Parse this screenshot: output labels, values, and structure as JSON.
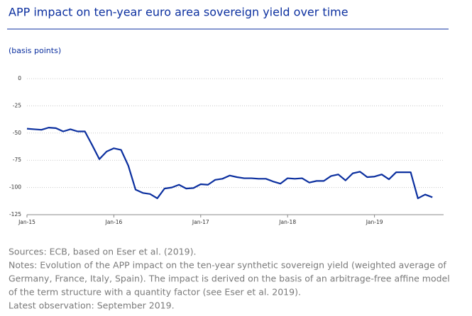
{
  "chart_data": {
    "type": "line",
    "title": "APP impact on ten-year euro area sovereign yield over time",
    "subtitle": "(basis points)",
    "categories": [
      "Jan-15",
      null,
      null,
      null,
      null,
      null,
      null,
      null,
      null,
      null,
      null,
      null,
      "Jan-16",
      null,
      null,
      null,
      null,
      null,
      null,
      null,
      null,
      null,
      null,
      null,
      "Jan-17",
      null,
      null,
      null,
      null,
      null,
      null,
      null,
      null,
      null,
      null,
      null,
      "Jan-18",
      null,
      null,
      null,
      null,
      null,
      null,
      null,
      null,
      null,
      null,
      null,
      "Jan-19",
      null,
      null,
      null,
      null,
      null,
      null,
      null,
      null
    ],
    "series": [
      {
        "color": "#0b2f9f",
        "values": [
          -46,
          -46.5,
          -47,
          -45,
          -45.5,
          -48.5,
          -46.5,
          -48.5,
          -48.5,
          -61,
          -74,
          -67,
          -64,
          -65.5,
          -80,
          -102,
          -105,
          -106,
          -110,
          -101,
          -100,
          -97.5,
          -101,
          -100.5,
          -97,
          -97.5,
          -93,
          -92,
          -89,
          -90.5,
          -91.5,
          -91.5,
          -92,
          -92,
          -94.5,
          -96.5,
          -91.5,
          -92,
          -91.5,
          -95.5,
          -94,
          -94,
          -89.5,
          -88,
          -93.5,
          -87,
          -85.5,
          -90.5,
          -90,
          -88,
          -92.5,
          -86,
          -86,
          -86,
          -110,
          -106.5,
          -109
        ]
      }
    ],
    "ylim": [
      -125,
      0
    ],
    "yticks": [
      0,
      -25,
      -50,
      -75,
      -100,
      -125
    ],
    "grid": true,
    "footer": [
      "Sources: ECB, based on Eser et al. (2019).",
      "Notes: Evolution of the APP impact on the ten-year synthetic sovereign yield (weighted average of",
      "Germany, France, Italy, Spain). The impact is derived on the basis of an arbitrage-free affine model",
      "of the term structure with a quantity factor (see Eser et al. 2019).",
      "Latest observation: September 2019."
    ]
  }
}
